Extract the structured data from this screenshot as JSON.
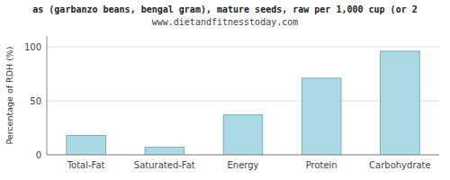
{
  "chart_data": {
    "type": "bar",
    "title": "as (garbanzo beans, bengal gram), mature seeds, raw per 1,000 cup (or 2",
    "subtitle": "www.dietandfitnesstoday.com",
    "categories": [
      "Total-Fat",
      "Saturated-Fat",
      "Energy",
      "Protein",
      "Carbohydrate"
    ],
    "values": [
      18,
      7,
      37,
      71,
      96
    ],
    "color": "#add8e6",
    "ylabel": "Percentage of RDH (%)",
    "ylim": [
      0,
      110
    ],
    "yticks": [
      0,
      50,
      100
    ],
    "grid": true
  }
}
